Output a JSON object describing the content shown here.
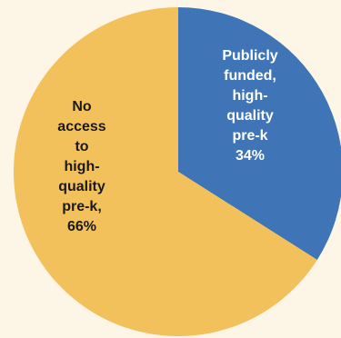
{
  "chart_data": {
    "type": "pie",
    "title": "",
    "slices": [
      {
        "label": "Publicly funded, high-quality pre-k",
        "value": 34,
        "display_lines": [
          "Publicly",
          "funded,",
          "high-",
          "quality",
          "pre-k",
          "34%"
        ],
        "color": "#3f75b6",
        "text_color": "#ffffff"
      },
      {
        "label": "No access to high-quality pre-k",
        "value": 66,
        "display_lines": [
          "No",
          "access",
          "to",
          "high-",
          "quality",
          "pre-k,",
          "66%"
        ],
        "color": "#f3c15c",
        "text_color": "#1a1a1a"
      }
    ]
  }
}
